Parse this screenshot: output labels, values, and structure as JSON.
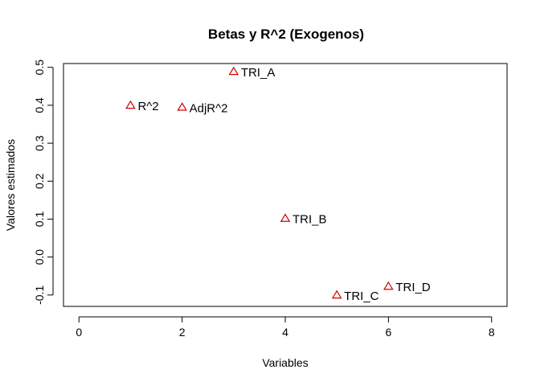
{
  "chart_data": {
    "type": "scatter",
    "title": "Betas y R^2 (Exogenos)",
    "xlabel": "Variables",
    "ylabel": "Valores estimados",
    "xlim": [
      -0.3,
      8.3
    ],
    "ylim": [
      -0.13,
      0.51
    ],
    "xticks": [
      0,
      2,
      4,
      6,
      8
    ],
    "yticks": [
      -0.1,
      0.0,
      0.1,
      0.2,
      0.3,
      0.4,
      0.5
    ],
    "ytick_labels": [
      "-0.1",
      "0.0",
      "0.1",
      "0.2",
      "0.3",
      "0.4",
      "0.5"
    ],
    "grid": false,
    "marker": "triangle-open",
    "marker_color": "#d00000",
    "points": [
      {
        "x": 1,
        "y": 0.4,
        "label": "R^2"
      },
      {
        "x": 2,
        "y": 0.395,
        "label": "AdjR^2"
      },
      {
        "x": 3,
        "y": 0.489,
        "label": "TRI_A"
      },
      {
        "x": 4,
        "y": 0.102,
        "label": "TRI_B"
      },
      {
        "x": 5,
        "y": -0.1,
        "label": "TRI_C"
      },
      {
        "x": 6,
        "y": -0.077,
        "label": "TRI_D"
      }
    ]
  }
}
